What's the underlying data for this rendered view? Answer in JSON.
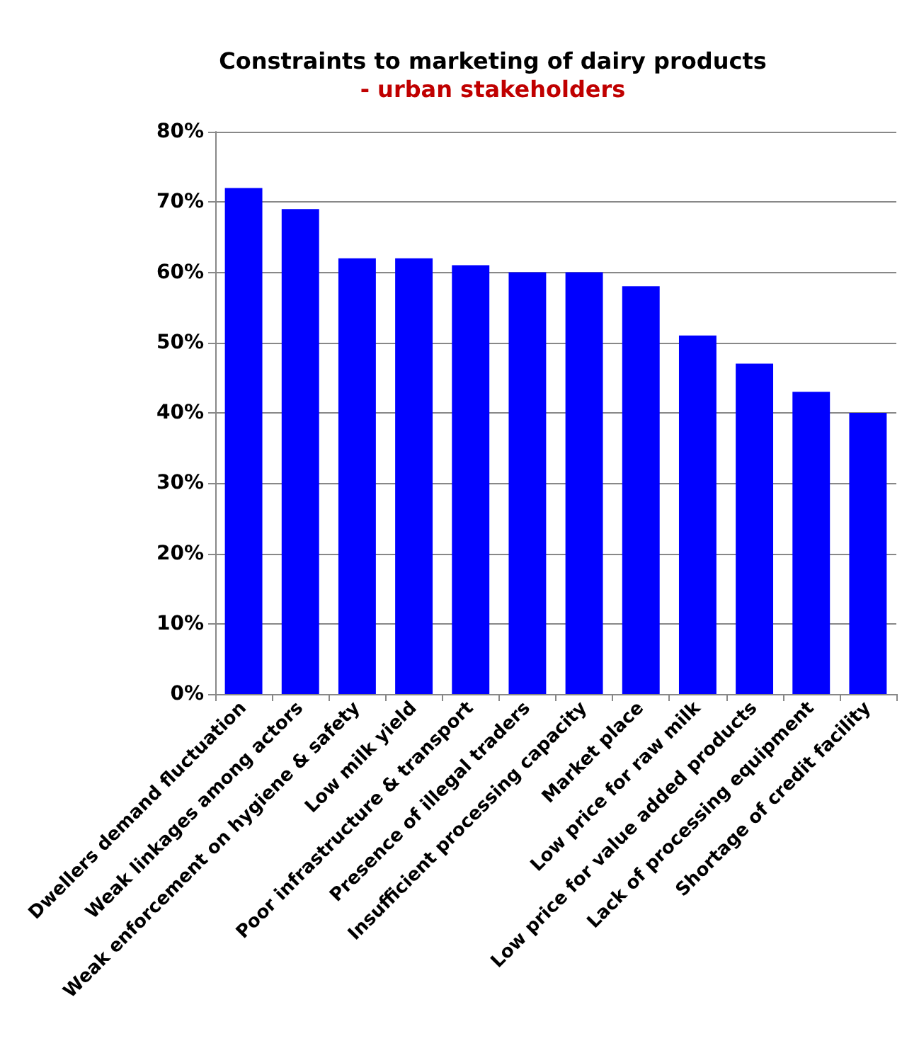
{
  "chart_data": {
    "type": "bar",
    "title": "Constraints to marketing of dairy products",
    "subtitle": "- urban stakeholders",
    "categories": [
      "Dwellers demand fluctuation",
      "Weak linkages among actors",
      "Weak enforcement on hygiene & safety",
      "Low milk yield",
      "Poor infrastructure & transport",
      "Presence of illegal traders",
      "Insufficient processing capacity",
      "Market place",
      "Low price for raw milk",
      "Low price for value added products",
      "Lack of processing equipment",
      "Shortage of credit facility"
    ],
    "values": [
      72,
      69,
      62,
      62,
      61,
      60,
      60,
      58,
      51,
      47,
      43,
      40
    ],
    "color": "#0000ff",
    "ylim": [
      0,
      80
    ],
    "yticks": [
      {
        "value": 0,
        "label": "0%"
      },
      {
        "value": 10,
        "label": "10%"
      },
      {
        "value": 20,
        "label": "20%"
      },
      {
        "value": 30,
        "label": "30%"
      },
      {
        "value": 40,
        "label": "40%"
      },
      {
        "value": 50,
        "label": "50%"
      },
      {
        "value": 60,
        "label": "60%"
      },
      {
        "value": 70,
        "label": "70%"
      },
      {
        "value": 80,
        "label": "80%"
      }
    ],
    "grid": "y"
  }
}
